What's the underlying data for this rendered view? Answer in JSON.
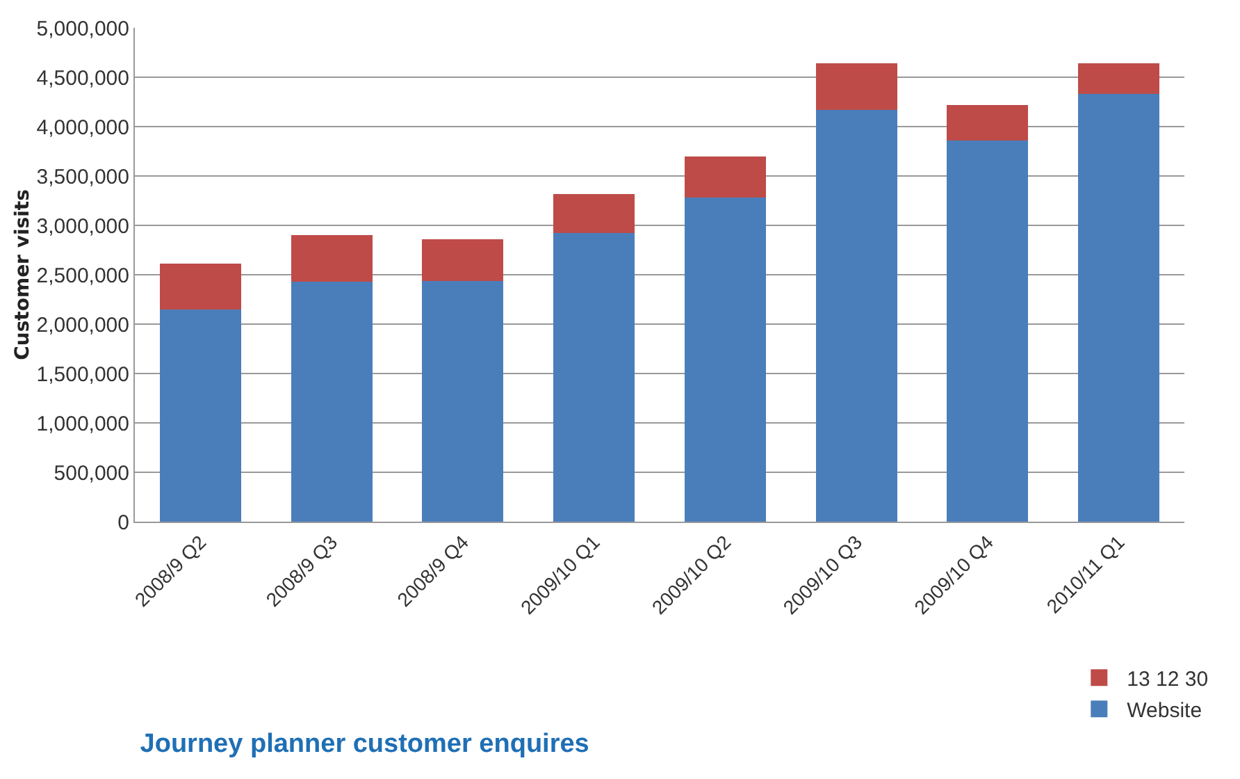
{
  "chart_data": {
    "type": "bar",
    "title": "Journey planner customer enquires",
    "ylabel": "Customer visits",
    "categories": [
      "2008/9 Q2",
      "2008/9 Q3",
      "2008/9 Q4",
      "2009/10 Q1",
      "2009/10 Q2",
      "2009/10 Q3",
      "2009/10 Q4",
      "2010/11 Q1"
    ],
    "stacked": true,
    "series": [
      {
        "name": "Website",
        "color": "#4a7ebb",
        "values": [
          2150000,
          2430000,
          2440000,
          2920000,
          3280000,
          4170000,
          3860000,
          4330000
        ]
      },
      {
        "name": "13 12 30",
        "color": "#be4b48",
        "values": [
          460000,
          470000,
          420000,
          400000,
          420000,
          470000,
          360000,
          310000
        ]
      }
    ],
    "ylim": [
      0,
      5000000
    ],
    "yticks": [
      {
        "value": 0,
        "label": "0"
      },
      {
        "value": 500000,
        "label": "500,000"
      },
      {
        "value": 1000000,
        "label": "1,000,000"
      },
      {
        "value": 1500000,
        "label": "1,500,000"
      },
      {
        "value": 2000000,
        "label": "2,000,000"
      },
      {
        "value": 2500000,
        "label": "2,500,000"
      },
      {
        "value": 3000000,
        "label": "3,000,000"
      },
      {
        "value": 3500000,
        "label": "3,500,000"
      },
      {
        "value": 4000000,
        "label": "4,000,000"
      },
      {
        "value": 4500000,
        "label": "4,500,000"
      },
      {
        "value": 5000000,
        "label": "5,000,000"
      }
    ],
    "grid": "y",
    "legend": "bottom right"
  }
}
